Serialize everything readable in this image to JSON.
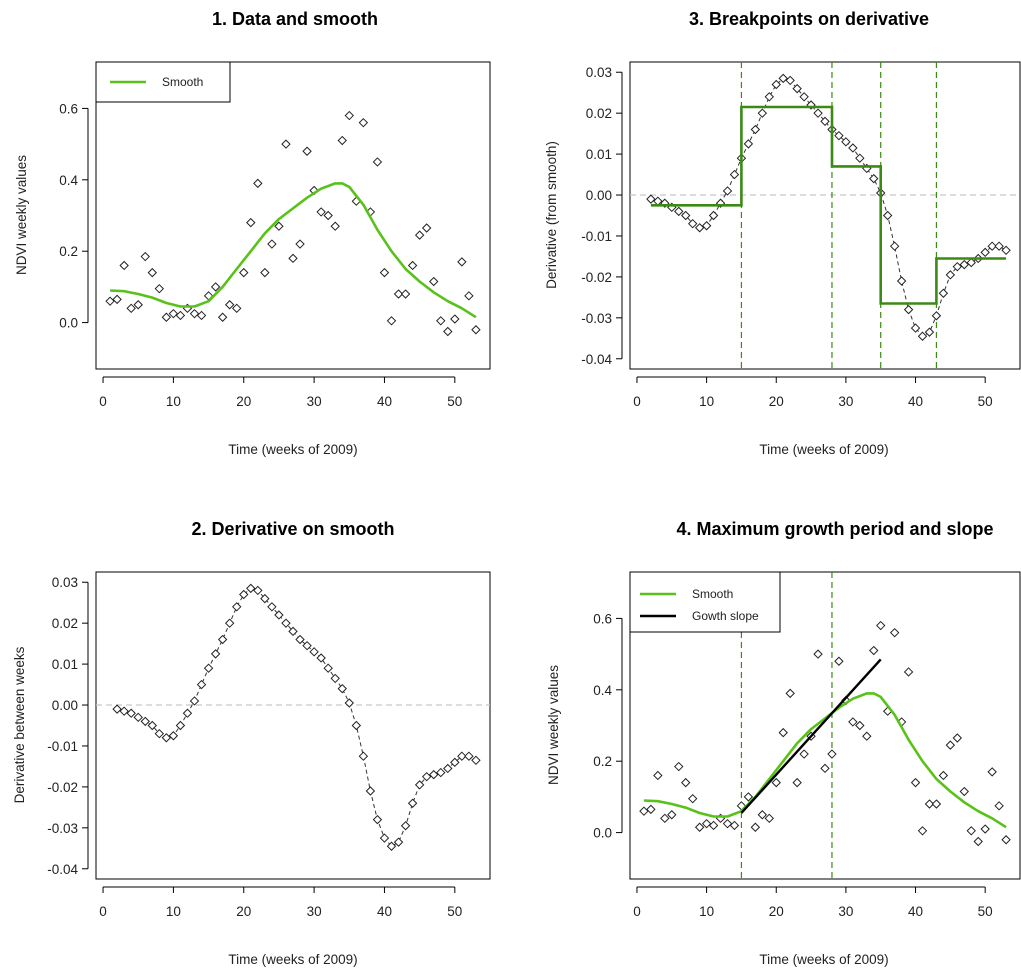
{
  "colors": {
    "smooth": "#58c21a",
    "breakpoints": "#3a8a14",
    "slope": "#000000",
    "zero_line": "#c8c8c8",
    "points": "#222222"
  },
  "chart_data": [
    {
      "id": "p1",
      "type": "scatter",
      "title": "1. Data and smooth",
      "xlabel": "Time (weeks of 2009)",
      "ylabel": "NDVI weekly values",
      "xlim": [
        -1,
        55
      ],
      "ylim": [
        -0.13,
        0.73
      ],
      "xticks": [
        0,
        10,
        20,
        30,
        40,
        50
      ],
      "yticks": [
        0.0,
        0.2,
        0.4,
        0.6
      ],
      "ytick_labels": [
        "0.0",
        "0.2",
        "0.4",
        "0.6"
      ],
      "legend": {
        "position": "top-left",
        "entries": [
          "Smooth"
        ]
      },
      "series": [
        {
          "name": "observations",
          "kind": "points",
          "x": [
            1,
            2,
            3,
            4,
            5,
            6,
            7,
            8,
            9,
            10,
            11,
            12,
            13,
            14,
            15,
            16,
            17,
            18,
            19,
            20,
            21,
            22,
            23,
            24,
            25,
            26,
            27,
            28,
            29,
            30,
            31,
            32,
            33,
            34,
            35,
            36,
            37,
            38,
            39,
            40,
            41,
            42,
            43,
            44,
            45,
            46,
            47,
            48,
            49,
            50,
            51,
            52,
            53
          ],
          "y": [
            0.06,
            0.065,
            0.16,
            0.04,
            0.05,
            0.185,
            0.14,
            0.095,
            0.015,
            0.025,
            0.02,
            0.04,
            0.025,
            0.02,
            0.075,
            0.1,
            0.015,
            0.05,
            0.04,
            0.14,
            0.28,
            0.39,
            0.14,
            0.22,
            0.27,
            0.5,
            0.18,
            0.22,
            0.48,
            0.37,
            0.31,
            0.3,
            0.27,
            0.51,
            0.58,
            0.34,
            0.56,
            0.31,
            0.45,
            0.14,
            0.005,
            0.08,
            0.08,
            0.16,
            0.245,
            0.265,
            0.115,
            0.005,
            -0.025,
            0.01,
            0.17,
            0.075,
            -0.02
          ]
        },
        {
          "name": "Smooth",
          "kind": "line",
          "x": [
            1,
            3,
            5,
            7,
            9,
            11,
            13,
            15,
            17,
            19,
            21,
            23,
            25,
            27,
            29,
            31,
            33,
            34,
            35,
            37,
            39,
            41,
            43,
            45,
            47,
            49,
            51,
            53
          ],
          "y": [
            0.09,
            0.088,
            0.08,
            0.07,
            0.055,
            0.045,
            0.045,
            0.06,
            0.1,
            0.15,
            0.2,
            0.25,
            0.29,
            0.32,
            0.35,
            0.375,
            0.39,
            0.39,
            0.38,
            0.33,
            0.26,
            0.2,
            0.15,
            0.115,
            0.085,
            0.06,
            0.04,
            0.015
          ]
        }
      ]
    },
    {
      "id": "p3",
      "type": "scatter",
      "title": "3. Breakpoints on derivative",
      "xlabel": "Time (weeks of 2009)",
      "ylabel": "Derivative (from smooth)",
      "xlim": [
        -1,
        55
      ],
      "ylim": [
        -0.0425,
        0.0325
      ],
      "xticks": [
        0,
        10,
        20,
        30,
        40,
        50
      ],
      "yticks": [
        -0.04,
        -0.03,
        -0.02,
        -0.01,
        0.0,
        0.01,
        0.02,
        0.03
      ],
      "ytick_labels": [
        "-0.04",
        "-0.03",
        "-0.02",
        "-0.01",
        "0.00",
        "0.01",
        "0.02",
        "0.03"
      ],
      "zero_line": 0,
      "breakpoints": [
        15,
        28,
        35,
        43
      ],
      "series": [
        {
          "name": "derivative",
          "kind": "points_dashed",
          "x": [
            2,
            3,
            4,
            5,
            6,
            7,
            8,
            9,
            10,
            11,
            12,
            13,
            14,
            15,
            16,
            17,
            18,
            19,
            20,
            21,
            22,
            23,
            24,
            25,
            26,
            27,
            28,
            29,
            30,
            31,
            32,
            33,
            34,
            35,
            36,
            37,
            38,
            39,
            40,
            41,
            42,
            43,
            44,
            45,
            46,
            47,
            48,
            49,
            50,
            51,
            52,
            53
          ],
          "y": [
            -0.001,
            -0.0015,
            -0.002,
            -0.003,
            -0.004,
            -0.005,
            -0.007,
            -0.008,
            -0.0075,
            -0.005,
            -0.002,
            0.001,
            0.005,
            0.009,
            0.0125,
            0.016,
            0.02,
            0.024,
            0.027,
            0.0285,
            0.028,
            0.026,
            0.024,
            0.022,
            0.02,
            0.018,
            0.016,
            0.0145,
            0.013,
            0.0115,
            0.009,
            0.0065,
            0.004,
            0.0005,
            -0.005,
            -0.0125,
            -0.021,
            -0.028,
            -0.0325,
            -0.0345,
            -0.0335,
            -0.0295,
            -0.024,
            -0.0195,
            -0.0175,
            -0.017,
            -0.0165,
            -0.0155,
            -0.014,
            -0.0125,
            -0.0125,
            -0.0135
          ]
        },
        {
          "name": "segments",
          "kind": "step",
          "x": [
            2,
            15,
            15,
            28,
            28,
            35,
            35,
            43,
            43,
            53
          ],
          "y": [
            -0.0025,
            -0.0025,
            0.0215,
            0.0215,
            0.007,
            0.007,
            -0.0265,
            -0.0265,
            -0.0155,
            -0.0155
          ]
        }
      ]
    },
    {
      "id": "p2",
      "type": "scatter",
      "title": "2. Derivative on smooth",
      "xlabel": "Time (weeks of 2009)",
      "ylabel": "Derivative between weeks",
      "xlim": [
        -1,
        55
      ],
      "ylim": [
        -0.0425,
        0.0325
      ],
      "xticks": [
        0,
        10,
        20,
        30,
        40,
        50
      ],
      "yticks": [
        -0.04,
        -0.03,
        -0.02,
        -0.01,
        0.0,
        0.01,
        0.02,
        0.03
      ],
      "ytick_labels": [
        "-0.04",
        "-0.03",
        "-0.02",
        "-0.01",
        "0.00",
        "0.01",
        "0.02",
        "0.03"
      ],
      "zero_line": 0,
      "series": [
        {
          "name": "derivative",
          "kind": "points_dashed",
          "x": [
            2,
            3,
            4,
            5,
            6,
            7,
            8,
            9,
            10,
            11,
            12,
            13,
            14,
            15,
            16,
            17,
            18,
            19,
            20,
            21,
            22,
            23,
            24,
            25,
            26,
            27,
            28,
            29,
            30,
            31,
            32,
            33,
            34,
            35,
            36,
            37,
            38,
            39,
            40,
            41,
            42,
            43,
            44,
            45,
            46,
            47,
            48,
            49,
            50,
            51,
            52,
            53
          ],
          "y": [
            -0.001,
            -0.0015,
            -0.002,
            -0.003,
            -0.004,
            -0.005,
            -0.007,
            -0.008,
            -0.0075,
            -0.005,
            -0.002,
            0.001,
            0.005,
            0.009,
            0.0125,
            0.016,
            0.02,
            0.024,
            0.027,
            0.0285,
            0.028,
            0.026,
            0.024,
            0.022,
            0.02,
            0.018,
            0.016,
            0.0145,
            0.013,
            0.0115,
            0.009,
            0.0065,
            0.004,
            0.0005,
            -0.005,
            -0.0125,
            -0.021,
            -0.028,
            -0.0325,
            -0.0345,
            -0.0335,
            -0.0295,
            -0.024,
            -0.0195,
            -0.0175,
            -0.017,
            -0.0165,
            -0.0155,
            -0.014,
            -0.0125,
            -0.0125,
            -0.0135
          ]
        }
      ]
    },
    {
      "id": "p4",
      "type": "scatter",
      "title": "4. Maximum growth period and slope",
      "xlabel": "Time (weeks of 2009)",
      "ylabel": "NDVI weekly values",
      "xlim": [
        -1,
        55
      ],
      "ylim": [
        -0.13,
        0.73
      ],
      "xticks": [
        0,
        10,
        20,
        30,
        40,
        50
      ],
      "yticks": [
        0.0,
        0.2,
        0.4,
        0.6
      ],
      "ytick_labels": [
        "0.0",
        "0.2",
        "0.4",
        "0.6"
      ],
      "breakpoints": [
        15,
        28
      ],
      "legend": {
        "position": "top-left",
        "entries": [
          "Smooth",
          "Gowth slope"
        ]
      },
      "series": [
        {
          "name": "observations",
          "kind": "points",
          "x": [
            1,
            2,
            3,
            4,
            5,
            6,
            7,
            8,
            9,
            10,
            11,
            12,
            13,
            14,
            15,
            16,
            17,
            18,
            19,
            20,
            21,
            22,
            23,
            24,
            25,
            26,
            27,
            28,
            29,
            30,
            31,
            32,
            33,
            34,
            35,
            36,
            37,
            38,
            39,
            40,
            41,
            42,
            43,
            44,
            45,
            46,
            47,
            48,
            49,
            50,
            51,
            52,
            53
          ],
          "y": [
            0.06,
            0.065,
            0.16,
            0.04,
            0.05,
            0.185,
            0.14,
            0.095,
            0.015,
            0.025,
            0.02,
            0.04,
            0.025,
            0.02,
            0.075,
            0.1,
            0.015,
            0.05,
            0.04,
            0.14,
            0.28,
            0.39,
            0.14,
            0.22,
            0.27,
            0.5,
            0.18,
            0.22,
            0.48,
            0.37,
            0.31,
            0.3,
            0.27,
            0.51,
            0.58,
            0.34,
            0.56,
            0.31,
            0.45,
            0.14,
            0.005,
            0.08,
            0.08,
            0.16,
            0.245,
            0.265,
            0.115,
            0.005,
            -0.025,
            0.01,
            0.17,
            0.075,
            -0.02
          ]
        },
        {
          "name": "Smooth",
          "kind": "line",
          "x": [
            1,
            3,
            5,
            7,
            9,
            11,
            13,
            15,
            17,
            19,
            21,
            23,
            25,
            27,
            29,
            31,
            33,
            34,
            35,
            37,
            39,
            41,
            43,
            45,
            47,
            49,
            51,
            53
          ],
          "y": [
            0.09,
            0.088,
            0.08,
            0.07,
            0.055,
            0.045,
            0.045,
            0.06,
            0.1,
            0.15,
            0.2,
            0.25,
            0.29,
            0.32,
            0.35,
            0.375,
            0.39,
            0.39,
            0.38,
            0.33,
            0.26,
            0.2,
            0.15,
            0.115,
            0.085,
            0.06,
            0.04,
            0.015
          ]
        },
        {
          "name": "Gowth slope",
          "kind": "slope",
          "x": [
            15,
            35
          ],
          "y": [
            0.055,
            0.485
          ]
        }
      ]
    }
  ]
}
